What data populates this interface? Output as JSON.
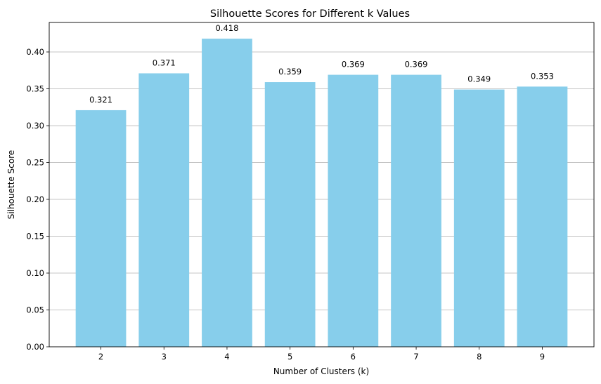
{
  "chart_data": {
    "type": "bar",
    "title": "Silhouette Scores for Different k Values",
    "xlabel": "Number of Clusters (k)",
    "ylabel": "Silhouette Score",
    "categories": [
      "2",
      "3",
      "4",
      "5",
      "6",
      "7",
      "8",
      "9"
    ],
    "values": [
      0.321,
      0.371,
      0.418,
      0.359,
      0.369,
      0.369,
      0.349,
      0.353
    ],
    "data_labels": [
      "0.321",
      "0.371",
      "0.418",
      "0.359",
      "0.369",
      "0.369",
      "0.349",
      "0.353"
    ],
    "ylim": [
      0,
      0.44
    ],
    "yticks": [
      0.0,
      0.05,
      0.1,
      0.15,
      0.2,
      0.25,
      0.3,
      0.35,
      0.4
    ],
    "ytick_labels": [
      "0.00",
      "0.05",
      "0.10",
      "0.15",
      "0.20",
      "0.25",
      "0.30",
      "0.35",
      "0.40"
    ],
    "grid": "y-axis major",
    "bar_color": "#87ceeb",
    "grid_color": "#b0b0b0"
  }
}
